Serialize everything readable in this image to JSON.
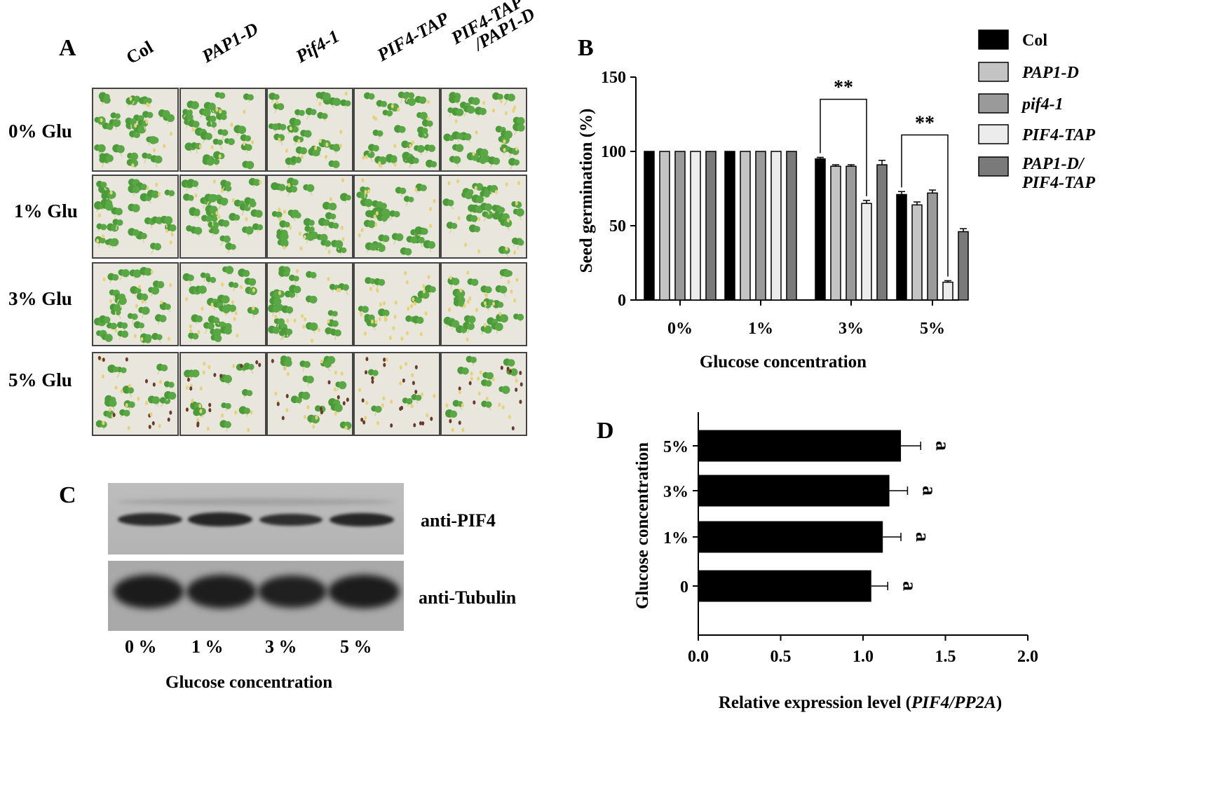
{
  "panel_a": {
    "letter": "A",
    "columns": [
      {
        "label": "Col",
        "italic": false
      },
      {
        "label": "PAP1-D",
        "italic": true
      },
      {
        "label": "Pif4-1",
        "italic": true
      },
      {
        "label": "PIF4-TAP",
        "italic": true
      },
      {
        "label": "PIF4-TAP\n/PAP1-D",
        "line1": "PIF4-TAP",
        "line2": "/PAP1-D",
        "italic": true
      }
    ],
    "rows": [
      "0% Glu",
      "1% Glu",
      "3% Glu",
      "5% Glu"
    ]
  },
  "panel_b": {
    "letter": "B",
    "significance": "**"
  },
  "panel_c": {
    "letter": "C",
    "band_labels": [
      "anti-PIF4",
      "anti-Tubulin"
    ],
    "lanes": [
      "0 %",
      "1 %",
      "3 %",
      "5 %"
    ],
    "xlabel": "Glucose concentration"
  },
  "panel_d": {
    "letter": "D"
  },
  "chart_data": [
    {
      "id": "B",
      "type": "bar",
      "categories": [
        "0%",
        "1%",
        "3%",
        "5%"
      ],
      "series": [
        {
          "name": "Col",
          "values": [
            100,
            100,
            95,
            71
          ],
          "errors": [
            0,
            0,
            1,
            2
          ],
          "color": "#000000"
        },
        {
          "name": "PAP1-D",
          "values": [
            100,
            100,
            90,
            64
          ],
          "errors": [
            0,
            0,
            1,
            2
          ],
          "color": "#c4c4c4"
        },
        {
          "name": "pif4-1",
          "values": [
            100,
            100,
            90,
            72
          ],
          "errors": [
            0,
            0,
            1,
            2
          ],
          "color": "#9a9a9a"
        },
        {
          "name": "PIF4-TAP",
          "values": [
            100,
            100,
            65,
            12
          ],
          "errors": [
            0,
            0,
            2,
            1
          ],
          "color": "#ececec"
        },
        {
          "name": "PAP1-D/\nPIF4-TAP",
          "line1": "PAP1-D/",
          "line2": "PIF4-TAP",
          "values": [
            100,
            100,
            91,
            46
          ],
          "errors": [
            0,
            0,
            3,
            2
          ],
          "color": "#7a7a7a"
        }
      ],
      "xlabel": "Glucose concentration",
      "ylabel": "Seed germination  (%)",
      "ylim": [
        0,
        150
      ],
      "yticks": [
        0,
        50,
        100,
        150
      ],
      "annotations": [
        {
          "text": "**",
          "category": "3%"
        },
        {
          "text": "**",
          "category": "5%"
        }
      ],
      "legend": "right"
    },
    {
      "id": "D",
      "type": "bar",
      "orientation": "horizontal",
      "categories": [
        "0",
        "1%",
        "3%",
        "5%"
      ],
      "values": [
        1.05,
        1.12,
        1.16,
        1.23
      ],
      "errors": [
        0.1,
        0.11,
        0.11,
        0.12
      ],
      "letters": [
        "a",
        "a",
        "a",
        "a"
      ],
      "xlabel_plain": "Relative expression level (",
      "xlabel_ital": "PIF4/PP2A",
      "xlabel_close": ")",
      "ylabel": "Glucose concentration",
      "xlim": [
        0.0,
        2.0
      ],
      "xticks": [
        "0.0",
        "0.5",
        "1.0",
        "1.5",
        "2.0"
      ]
    }
  ]
}
